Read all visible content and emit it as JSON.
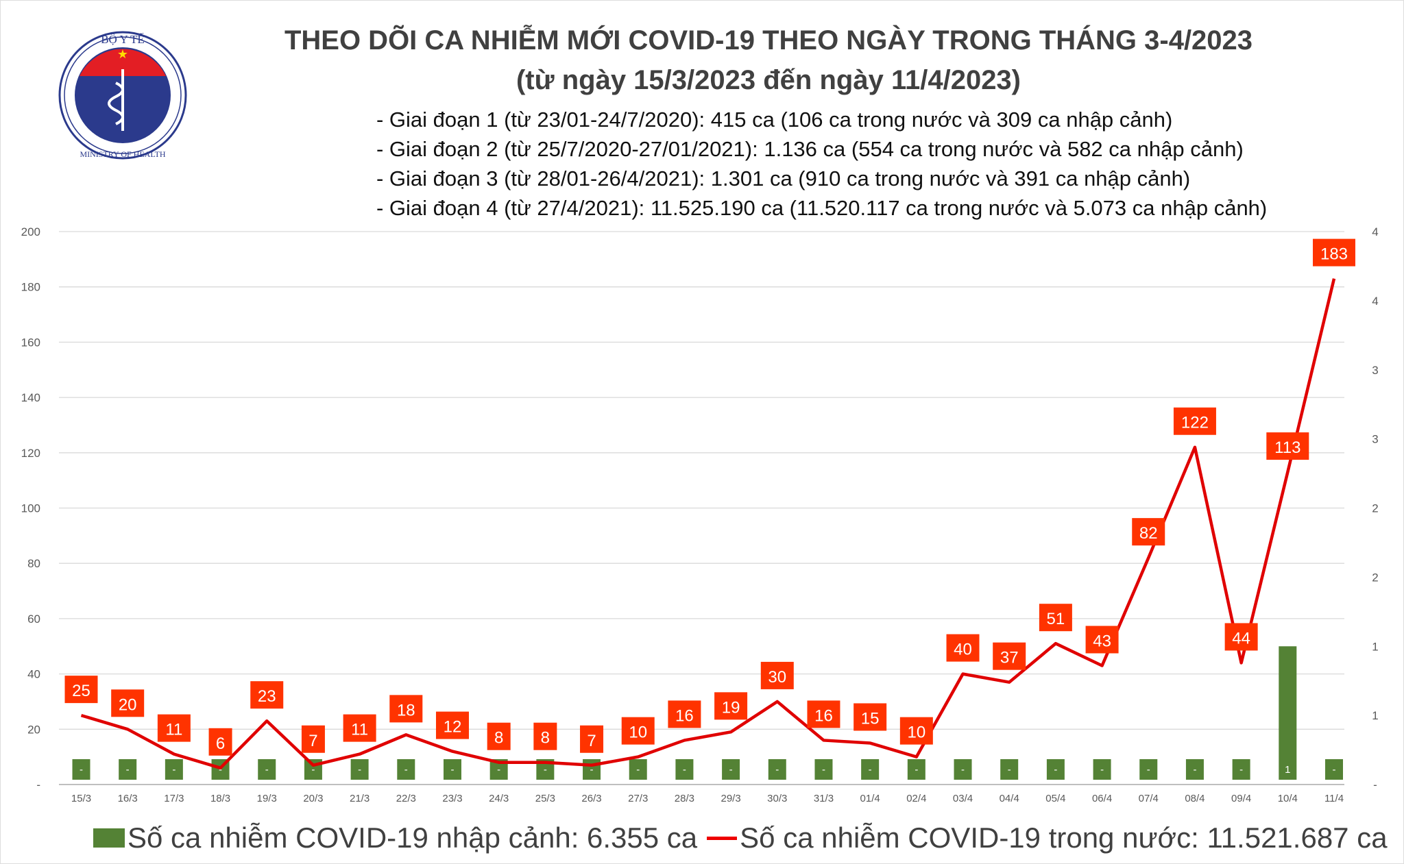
{
  "header": {
    "title": "THEO DÕI CA NHIỄM MỚI COVID-19 THEO NGÀY TRONG THÁNG 3-4/2023",
    "subtitle": "(từ ngày 15/3/2023 đến ngày 11/4/2023)",
    "notes": [
      "- Giai đoạn 1 (từ 23/01-24/7/2020): 415 ca (106 ca trong nước và 309 ca nhập cảnh)",
      "- Giai đoạn 2 (từ 25/7/2020-27/01/2021): 1.136 ca (554 ca trong nước và 582 ca nhập cảnh)",
      "- Giai đoạn 3 (từ 28/01-26/4/2021): 1.301 ca (910 ca trong nước và 391 ca nhập cảnh)",
      "- Giai đoạn 4 (từ 27/4/2021): 11.525.190 ca (11.520.117 ca trong nước và 5.073 ca nhập cảnh)"
    ]
  },
  "logo": {
    "text_top": "BỘ Y TẾ",
    "text_bottom": "MINISTRY OF HEALTH"
  },
  "chart_data": {
    "type": "bar+line",
    "categories": [
      "15/3",
      "16/3",
      "17/3",
      "18/3",
      "19/3",
      "20/3",
      "21/3",
      "22/3",
      "23/3",
      "24/3",
      "25/3",
      "26/3",
      "27/3",
      "28/3",
      "29/3",
      "30/3",
      "31/3",
      "01/4",
      "02/4",
      "03/4",
      "04/4",
      "05/4",
      "06/4",
      "07/4",
      "08/4",
      "09/4",
      "10/4",
      "11/4"
    ],
    "series": [
      {
        "name": "Số ca nhiễm COVID-19 nhập cảnh: 6.355 ca",
        "type": "bar",
        "axis": "right",
        "color": "#548235",
        "values": [
          0,
          0,
          0,
          0,
          0,
          0,
          0,
          0,
          0,
          0,
          0,
          0,
          0,
          0,
          0,
          0,
          0,
          0,
          0,
          0,
          0,
          0,
          0,
          0,
          0,
          0,
          1,
          0
        ]
      },
      {
        "name": "Số ca nhiễm COVID-19 trong nước: 11.521.687 ca",
        "type": "line",
        "axis": "left",
        "color": "#e00000",
        "label_color": "#ff3300",
        "values": [
          25,
          20,
          11,
          6,
          23,
          7,
          11,
          18,
          12,
          8,
          8,
          7,
          10,
          16,
          19,
          30,
          16,
          15,
          10,
          40,
          37,
          51,
          43,
          82,
          122,
          44,
          113,
          183
        ]
      }
    ],
    "left_axis": {
      "ylim": [
        0,
        200
      ],
      "ticks": [
        "-",
        "20",
        "40",
        "60",
        "80",
        "100",
        "120",
        "140",
        "160",
        "180",
        "200"
      ]
    },
    "right_axis": {
      "ylim": [
        0,
        4
      ],
      "ticks": [
        "-",
        "1",
        "1",
        "2",
        "2",
        "3",
        "3",
        "4",
        "4"
      ]
    },
    "grid": true,
    "legend": "bottom"
  }
}
